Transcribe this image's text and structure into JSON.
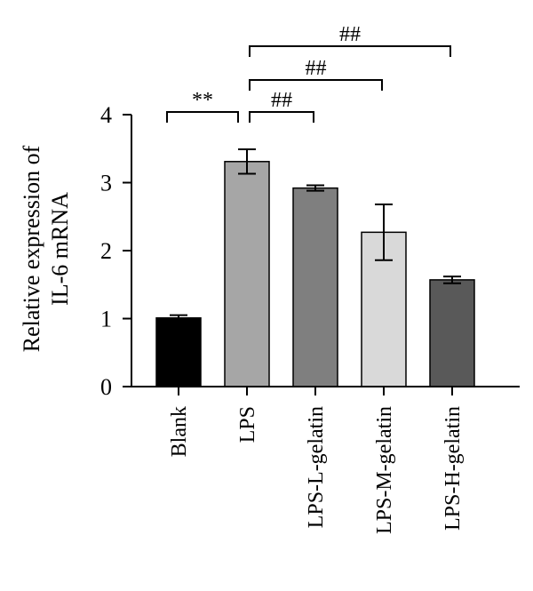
{
  "chart_data": {
    "type": "bar",
    "ylabel": [
      "Relative expression of",
      "IL-6 mRNA"
    ],
    "ylim": [
      0,
      4
    ],
    "yticks": [
      0,
      1,
      2,
      3,
      4
    ],
    "categories": [
      "Blank",
      "LPS",
      "LPS-L-gelatin",
      "LPS-M-gelatin",
      "LPS-H-gelatin"
    ],
    "values": [
      1.01,
      3.31,
      2.92,
      2.27,
      1.57
    ],
    "errors": [
      0.04,
      0.18,
      0.04,
      0.41,
      0.05
    ],
    "colors": [
      "#000000",
      "#a6a6a6",
      "#7f7f7f",
      "#d9d9d9",
      "#595959"
    ],
    "significance": [
      {
        "from": 0,
        "to": 1,
        "label": "**"
      },
      {
        "from": 1,
        "to": 2,
        "label": "##"
      },
      {
        "from": 1,
        "to": 3,
        "label": "##"
      },
      {
        "from": 1,
        "to": 4,
        "label": "##"
      }
    ]
  }
}
